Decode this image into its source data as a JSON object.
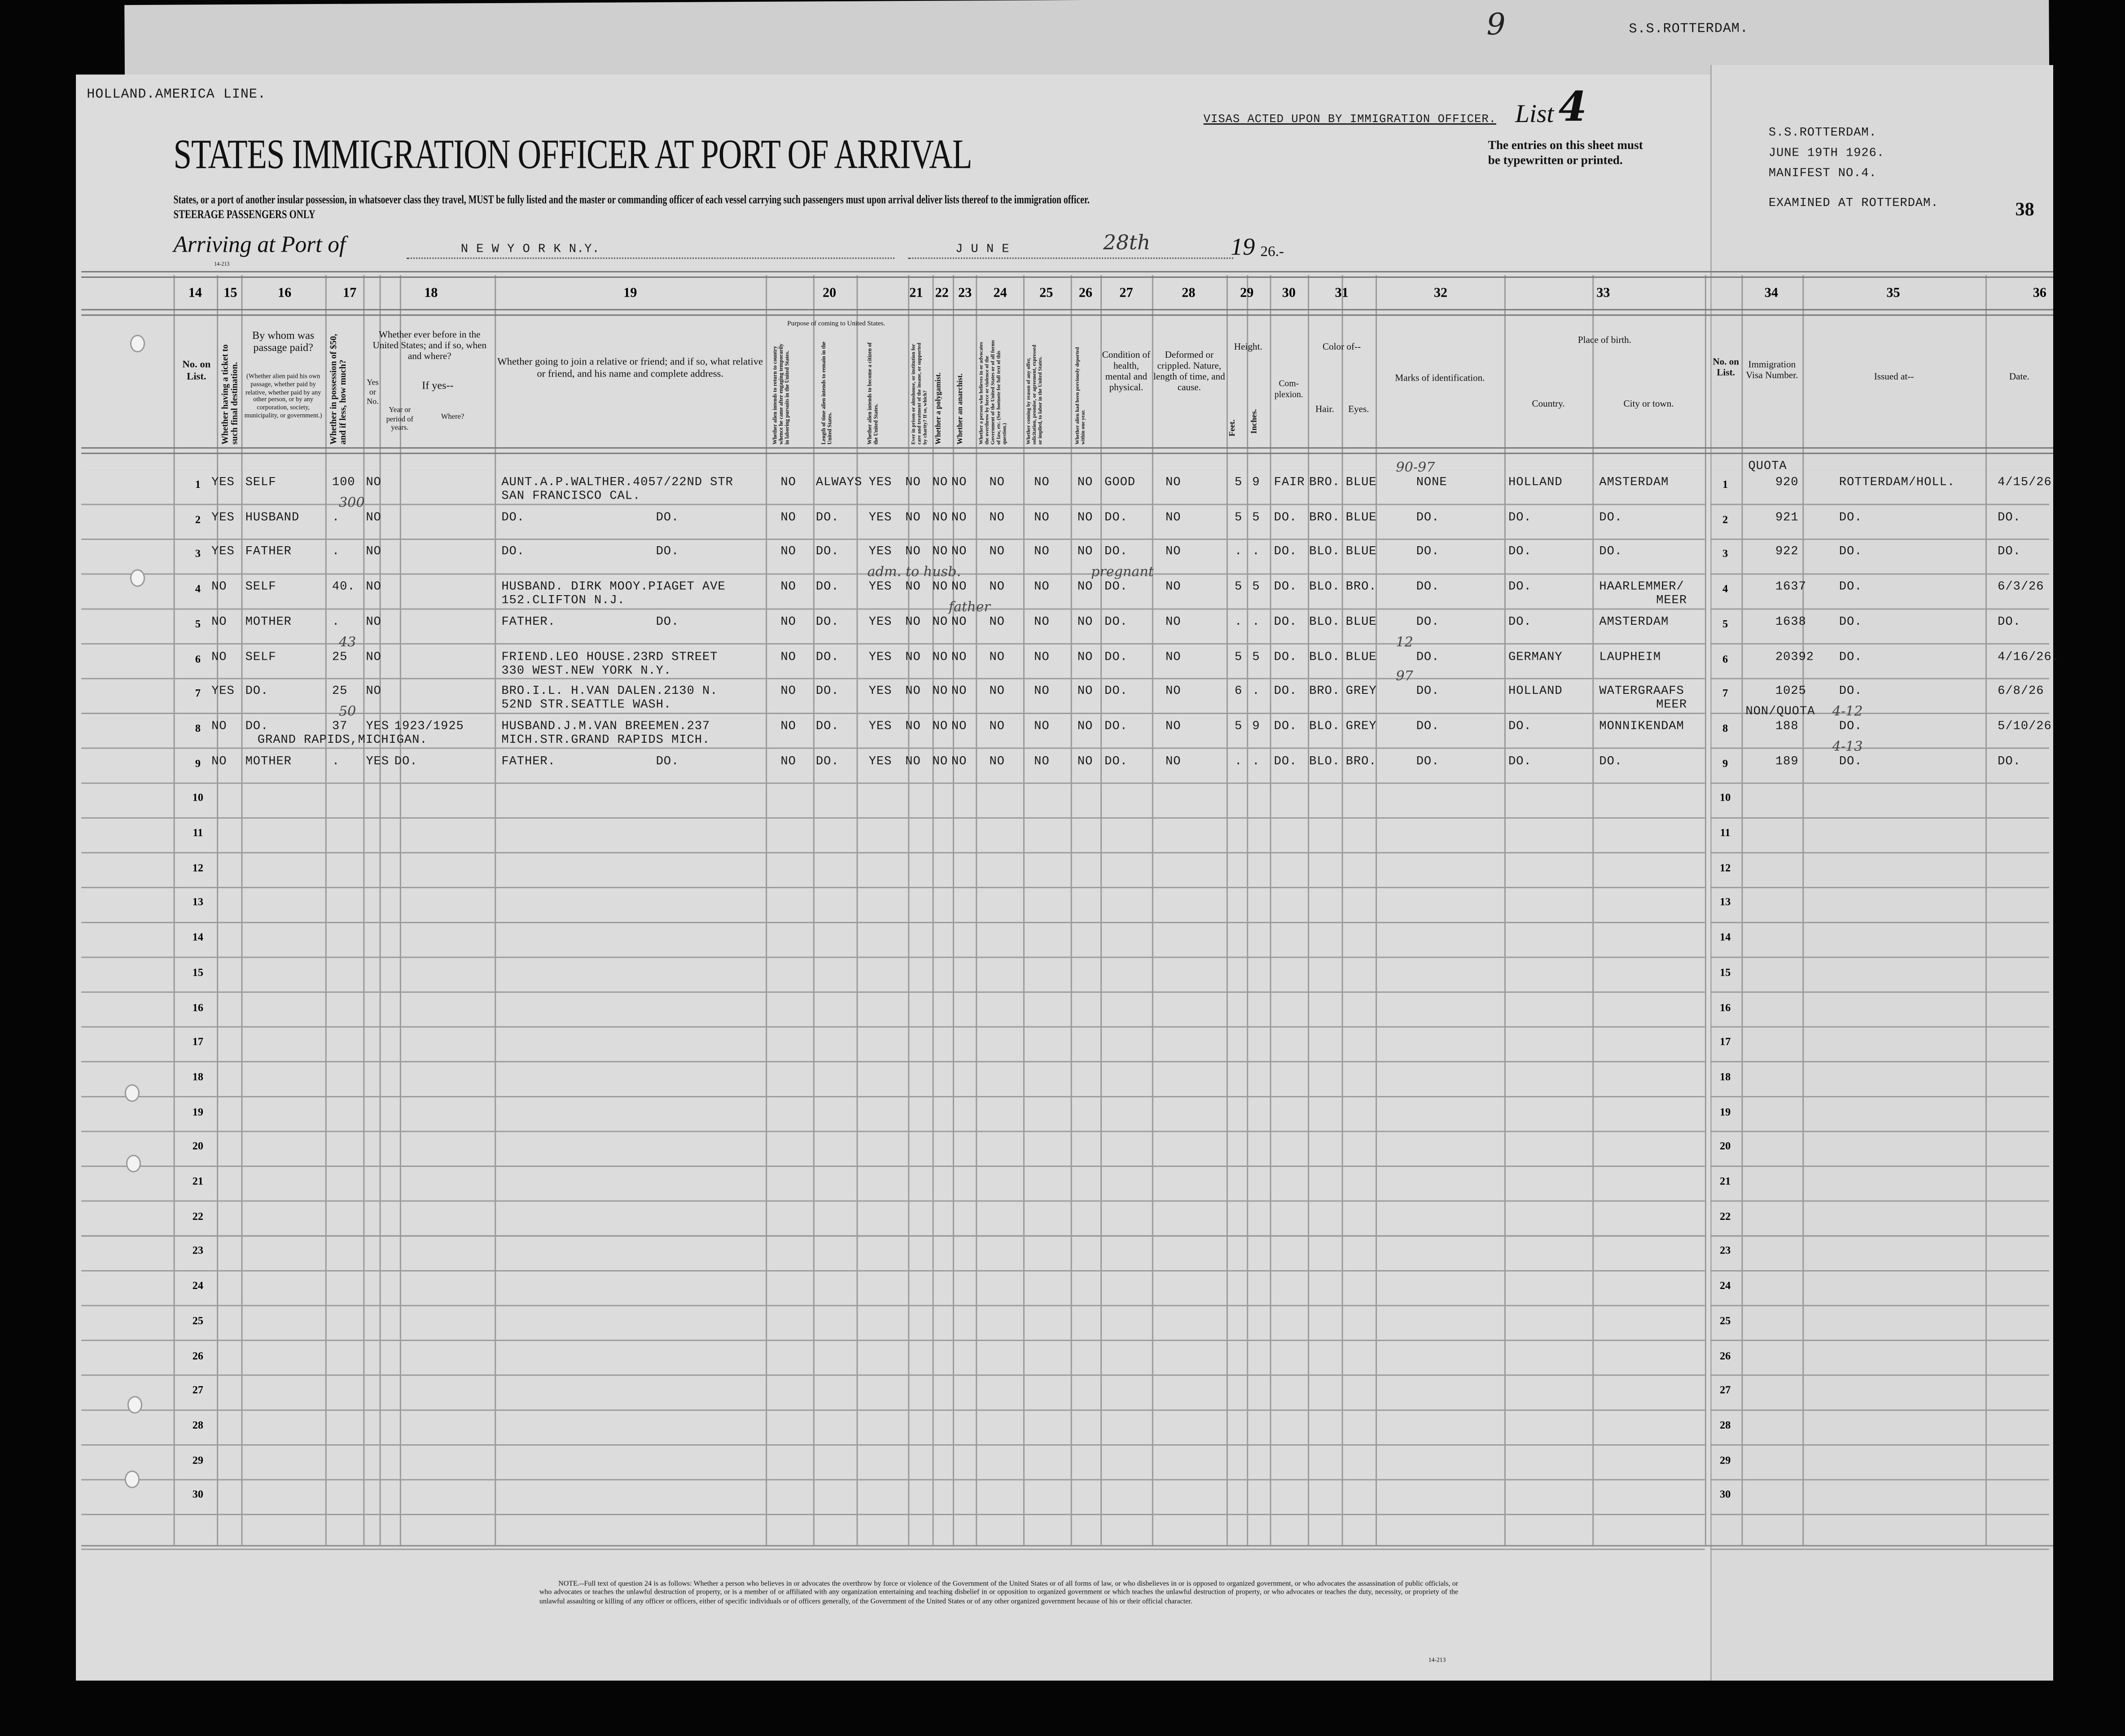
{
  "document": {
    "line_name": "HOLLAND.AMERICA LINE.",
    "title": "STATES IMMIGRATION OFFICER AT PORT OF ARRIVAL",
    "visas_stamp": "VISAS ACTED UPON BY IMMIGRATION OFFICER.",
    "list_label": "List",
    "list_number": "4",
    "entries_notice_1": "The entries on this sheet must",
    "entries_notice_2": "be typewritten or printed.",
    "instruction": "States, or a port of another insular possession, in whatsoever class they travel, MUST be fully listed and the master or commanding officer of each vessel carrying such passengers must upon arrival deliver lists thereof to the immigration officer.",
    "steerage": "STEERAGE PASSENGERS ONLY",
    "arriving_label": "Arriving at Port of",
    "port": "N E W   Y O R K   N.Y.",
    "month": "J U N E",
    "day": "28th",
    "year_prefix": "19",
    "year_suffix": "26.-",
    "form_number": "14-213",
    "back_sheet_stamp": "S.S.ROTTERDAM.",
    "back_sheet_mark": "9"
  },
  "ship_stamp": {
    "ship": "S.S.ROTTERDAM.",
    "date": "JUNE 19TH 1926.",
    "manifest": "MANIFEST NO.4.",
    "examined": "EXAMINED AT ROTTERDAM.",
    "page": "38"
  },
  "column_numbers": [
    "14",
    "15",
    "16",
    "17",
    "18",
    "19",
    "20",
    "21",
    "22",
    "23",
    "24",
    "25",
    "26",
    "27",
    "28",
    "29",
    "30",
    "31",
    "32",
    "33",
    "34",
    "35",
    "36"
  ],
  "headers": {
    "no_on_list": "No. on List.",
    "ticket": "Whether having a ticket to such final destination.",
    "paid_by": "By whom was passage paid?",
    "paid_by_note": "(Whether alien paid his own passage, whether paid by relative, whether paid by any other person, or by any corporation, society, municipality, or government.)",
    "money": "Whether in possession of $50, and if less, how much?",
    "before": "Whether ever before in the United States; and if so, when and where?",
    "before_yes_no": "Yes or No.",
    "before_if_yes": "If yes--",
    "before_year": "Year or period of years.",
    "before_where": "Where?",
    "relative": "Whether going to join a relative or friend; and if so, what relative or friend, and his name and complete address.",
    "purpose": "Purpose of coming to United States.",
    "purpose_return": "Whether alien intends to return to country whence he came after engaging temporarily in laboring pursuits in the United States.",
    "purpose_length": "Length of time alien intends to remain in the United States.",
    "purpose_citizen": "Whether alien intends to become a citizen of the United States.",
    "prison": "Ever in prison or almshouse, or institution for care and treatment of the insane, or supported by charity? If so, which?",
    "polygamist": "Whether a polygamist.",
    "anarchist": "Whether an anarchist.",
    "overthrow": "Whether a person who believes in or advocates the overthrow by force or violence of the Government of the United States or of all forms of law, etc. (See footnote for full text of this question.)",
    "labor_offer": "Whether coming by reason of any offer, solicitation, promise, or agreement, expressed or implied, to labor in the United States.",
    "deported": "Whether alien had been previously deported within one year.",
    "health": "Condition of health, mental and physical.",
    "deformed": "Deformed or crippled. Nature, length of time, and cause.",
    "height": "Height.",
    "feet": "Feet.",
    "inches": "Inches.",
    "complexion": "Com-plexion.",
    "color_of": "Color of--",
    "hair": "Hair.",
    "eyes": "Eyes.",
    "marks": "Marks of identification.",
    "birthplace": "Place of birth.",
    "country": "Country.",
    "city": "City or town.",
    "r_no_on_list": "No. on List.",
    "visa_number": "Immigration Visa Number.",
    "issued_at": "Issued at--",
    "date": "Date."
  },
  "row_numbers": [
    "1",
    "2",
    "3",
    "4",
    "5",
    "6",
    "7",
    "8",
    "9",
    "10",
    "11",
    "12",
    "13",
    "14",
    "15",
    "16",
    "17",
    "18",
    "19",
    "20",
    "21",
    "22",
    "23",
    "24",
    "25",
    "26",
    "27",
    "28",
    "29",
    "30"
  ],
  "visa_group_labels": {
    "quota": "QUOTA",
    "non_quota": "NON/QUOTA"
  },
  "passengers": [
    {
      "ticket": "YES",
      "paid": "SELF",
      "money": "100",
      "byes": "NO",
      "rel": "AUNT.A.P.WALTHER.4057/22ND STR",
      "rel2": "SAN FRANCISCO CAL.",
      "p_return": "NO",
      "p_length": "ALWAYS",
      "p_citizen": "YES",
      "q21": "NO",
      "q22": "NO",
      "q23": "NO",
      "q24": "NO",
      "q25": "NO",
      "q26": "NO",
      "health": "GOOD",
      "deformed": "NO",
      "feet": "5",
      "inches": "9",
      "complexion": "FAIR",
      "hair": "BRO.",
      "eyes": "BLUE",
      "marks": "NONE",
      "country": "HOLLAND",
      "city": "AMSTERDAM",
      "visa": "920",
      "issued": "ROTTERDAM/HOLL.",
      "date": "4/15/26"
    },
    {
      "ticket": "YES",
      "paid": "HUSBAND",
      "money": ".",
      "byes": "NO",
      "rel": "DO.",
      "rel_b": "DO.",
      "p_return": "NO",
      "p_length": "DO.",
      "p_citizen": "YES",
      "q21": "NO",
      "q22": "NO",
      "q23": "NO",
      "q24": "NO",
      "q25": "NO",
      "q26": "NO",
      "health": "DO.",
      "deformed": "NO",
      "feet": "5",
      "inches": "5",
      "complexion": "DO.",
      "hair": "BRO.",
      "eyes": "BLUE",
      "marks": "DO.",
      "country": "DO.",
      "city": "DO.",
      "visa": "921",
      "issued": "DO.",
      "date": "DO."
    },
    {
      "ticket": "YES",
      "paid": "FATHER",
      "money": ".",
      "byes": "NO",
      "rel": "DO.",
      "rel_b": "DO.",
      "p_return": "NO",
      "p_length": "DO.",
      "p_citizen": "YES",
      "q21": "NO",
      "q22": "NO",
      "q23": "NO",
      "q24": "NO",
      "q25": "NO",
      "q26": "NO",
      "health": "DO.",
      "deformed": "NO",
      "feet": ".",
      "inches": ".",
      "complexion": "DO.",
      "hair": "BLO.",
      "eyes": "BLUE",
      "marks": "DO.",
      "country": "DO.",
      "city": "DO.",
      "visa": "922",
      "issued": "DO.",
      "date": "DO."
    },
    {
      "ticket": "NO",
      "paid": "SELF",
      "money": "40.",
      "byes": "NO",
      "rel": "HUSBAND. DIRK MOOY.PIAGET AVE",
      "rel2": "152.CLIFTON N.J.",
      "p_return": "NO",
      "p_length": "DO.",
      "p_citizen": "YES",
      "q21": "NO",
      "q22": "NO",
      "q23": "NO",
      "q24": "NO",
      "q25": "NO",
      "q26": "NO",
      "health": "DO.",
      "deformed": "NO",
      "feet": "5",
      "inches": "5",
      "complexion": "DO.",
      "hair": "BLO.",
      "eyes": "BRO.",
      "marks": "DO.",
      "country": "DO.",
      "city": "HAARLEMMER/",
      "city2": "MEER",
      "visa": "1637",
      "issued": "DO.",
      "date": "6/3/26"
    },
    {
      "ticket": "NO",
      "paid": "MOTHER",
      "money": ".",
      "byes": "NO",
      "rel": "FATHER.",
      "rel_b": "DO.",
      "p_return": "NO",
      "p_length": "DO.",
      "p_citizen": "YES",
      "q21": "NO",
      "q22": "NO",
      "q23": "NO",
      "q24": "NO",
      "q25": "NO",
      "q26": "NO",
      "health": "DO.",
      "deformed": "NO",
      "feet": ".",
      "inches": ".",
      "complexion": "DO.",
      "hair": "BLO.",
      "eyes": "BLUE",
      "marks": "DO.",
      "country": "DO.",
      "city": "AMSTERDAM",
      "visa": "1638",
      "issued": "DO.",
      "date": "DO."
    },
    {
      "ticket": "NO",
      "paid": "SELF",
      "money": "25",
      "byes": "NO",
      "rel": "FRIEND.LEO HOUSE.23RD STREET",
      "rel2": "330 WEST.NEW YORK N.Y.",
      "p_return": "NO",
      "p_length": "DO.",
      "p_citizen": "YES",
      "q21": "NO",
      "q22": "NO",
      "q23": "NO",
      "q24": "NO",
      "q25": "NO",
      "q26": "NO",
      "health": "DO.",
      "deformed": "NO",
      "feet": "5",
      "inches": "5",
      "complexion": "DO.",
      "hair": "BLO.",
      "eyes": "BLUE",
      "marks": "DO.",
      "country": "GERMANY",
      "city": "LAUPHEIM",
      "visa": "20392",
      "issued": "DO.",
      "date": "4/16/26."
    },
    {
      "ticket": "YES",
      "paid": "DO.",
      "money": "25",
      "byes": "NO",
      "rel": "BRO.I.L. H.VAN DALEN.2130 N.",
      "rel2": "52ND STR.SEATTLE WASH.",
      "p_return": "NO",
      "p_length": "DO.",
      "p_citizen": "YES",
      "q21": "NO",
      "q22": "NO",
      "q23": "NO",
      "q24": "NO",
      "q25": "NO",
      "q26": "NO",
      "health": "DO.",
      "deformed": "NO",
      "feet": "6",
      "inches": ".",
      "complexion": "DO.",
      "hair": "BRO.",
      "eyes": "GREY",
      "marks": "DO.",
      "country": "HOLLAND",
      "city": "WATERGRAAFS",
      "city2": "MEER",
      "visa": "1025",
      "issued": "DO.",
      "date": "6/8/26"
    },
    {
      "ticket": "NO",
      "paid": "DO.",
      "money": "37",
      "byes": "YES",
      "byear": "1923/1925",
      "where2": "GRAND RAPIDS,MICHIGAN.",
      "rel": "HUSBAND.J.M.VAN BREEMEN.237",
      "rel2": "MICH.STR.GRAND RAPIDS MICH.",
      "p_return": "NO",
      "p_length": "DO.",
      "p_citizen": "YES",
      "q21": "NO",
      "q22": "NO",
      "q23": "NO",
      "q24": "NO",
      "q25": "NO",
      "q26": "NO",
      "health": "DO.",
      "deformed": "NO",
      "feet": "5",
      "inches": "9",
      "complexion": "DO.",
      "hair": "BLO.",
      "eyes": "GREY",
      "marks": "DO.",
      "country": "DO.",
      "city": "MONNIKENDAM",
      "visa": "188",
      "issued": "DO.",
      "date": "5/10/26"
    },
    {
      "ticket": "NO",
      "paid": "MOTHER",
      "money": ".",
      "byes": "YES",
      "byear": "DO.",
      "rel": "FATHER.",
      "rel_b": "DO.",
      "p_return": "NO",
      "p_length": "DO.",
      "p_citizen": "YES",
      "q21": "NO",
      "q22": "NO",
      "q23": "NO",
      "q24": "NO",
      "q25": "NO",
      "q26": "NO",
      "health": "DO.",
      "deformed": "NO",
      "feet": ".",
      "inches": ".",
      "complexion": "DO.",
      "hair": "BLO.",
      "eyes": "BRO.",
      "marks": "DO.",
      "country": "DO.",
      "city": "DO.",
      "visa": "189",
      "issued": "DO.",
      "date": "DO."
    }
  ],
  "handwritten": [
    {
      "text": "300",
      "row": 2,
      "col": "money"
    },
    {
      "text": "43",
      "row": 6,
      "col": "money"
    },
    {
      "text": "50",
      "row": 8,
      "col": "money"
    },
    {
      "text": "adm. to husb.",
      "row": 4,
      "col": "p_citizen"
    },
    {
      "text": "father",
      "row": 5,
      "col": "q22"
    },
    {
      "text": "pregnant",
      "row": 4,
      "col": "health"
    },
    {
      "text": "90-97",
      "row": 1,
      "col": "marks"
    },
    {
      "text": "12",
      "row": 6,
      "col": "marks"
    },
    {
      "text": "97",
      "row": 7,
      "col": "marks"
    },
    {
      "text": "4-12",
      "row": 8,
      "col": "r_issued"
    },
    {
      "text": "4-13",
      "row": 9,
      "col": "r_issued"
    }
  ],
  "footnote": "NOTE.--Full text of question 24 is as follows: Whether a person who believes in or advocates the overthrow by force or violence of the Government of the United States or of all forms of law, or who disbelieves in or is opposed to organized government, or who advocates the assassination of public officials, or who advocates or teaches the unlawful destruction of property, or is a member of or affiliated with any organization entertaining and teaching disbelief in or opposition to organized government or which teaches the unlawful destruction of property, or who advocates or teaches the duty, necessity, or propriety of the unlawful assaulting or killing of any officer or officers, either of specific individuals or of officers generally, of the Government of the United States or of any other organized government because of his or their official character.",
  "footnote_form": "14-213"
}
